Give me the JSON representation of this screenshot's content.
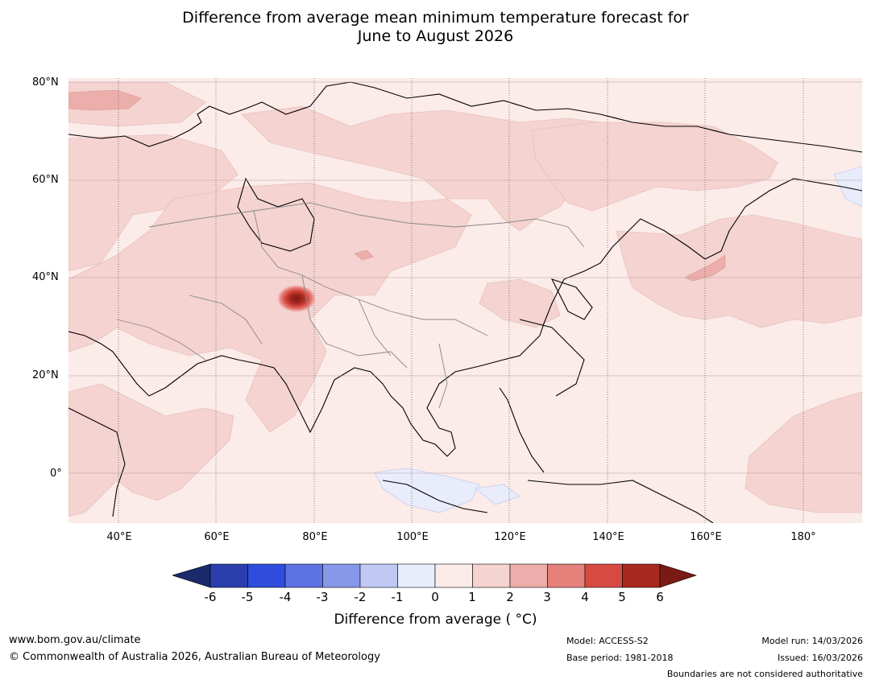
{
  "title": {
    "line1": "Difference from average mean minimum temperature forecast for",
    "line2": "June to August 2026"
  },
  "map": {
    "lat_labels": [
      "80°N",
      "60°N",
      "40°N",
      "20°N",
      "0°"
    ],
    "lon_labels": [
      "40°E",
      "60°E",
      "80°E",
      "100°E",
      "120°E",
      "140°E",
      "160°E",
      "180°"
    ],
    "extent": {
      "lon_min": 30,
      "lon_max": 192,
      "lat_min": -10,
      "lat_max": 81
    }
  },
  "colorbar": {
    "ticks": [
      "-6",
      "-5",
      "-4",
      "-3",
      "-2",
      "-1",
      "0",
      "1",
      "2",
      "3",
      "4",
      "5",
      "6"
    ],
    "label": "Difference from average ( °C)",
    "colors": {
      "below_min": "#1a2a6c",
      "bins": [
        "#2a3fad",
        "#2f4ddc",
        "#5e73e3",
        "#8798ea",
        "#c0c9f4",
        "#e8ecfb",
        "#fbebe9",
        "#f4d3d0",
        "#ecaeaa",
        "#e5817a",
        "#d74a42",
        "#a8291f"
      ],
      "above_max": "#7a1a14"
    }
  },
  "footer": {
    "website": "www.bom.gov.au/climate",
    "copyright": "© Commonwealth of Australia 2026, Australian Bureau of Meteorology",
    "model": "Model: ACCESS-S2",
    "base_period": "Base period: 1981-2018",
    "model_run": "Model run: 14/03/2026",
    "issued": "Issued: 16/03/2026",
    "disclaimer": "Boundaries are not considered authoritative"
  }
}
